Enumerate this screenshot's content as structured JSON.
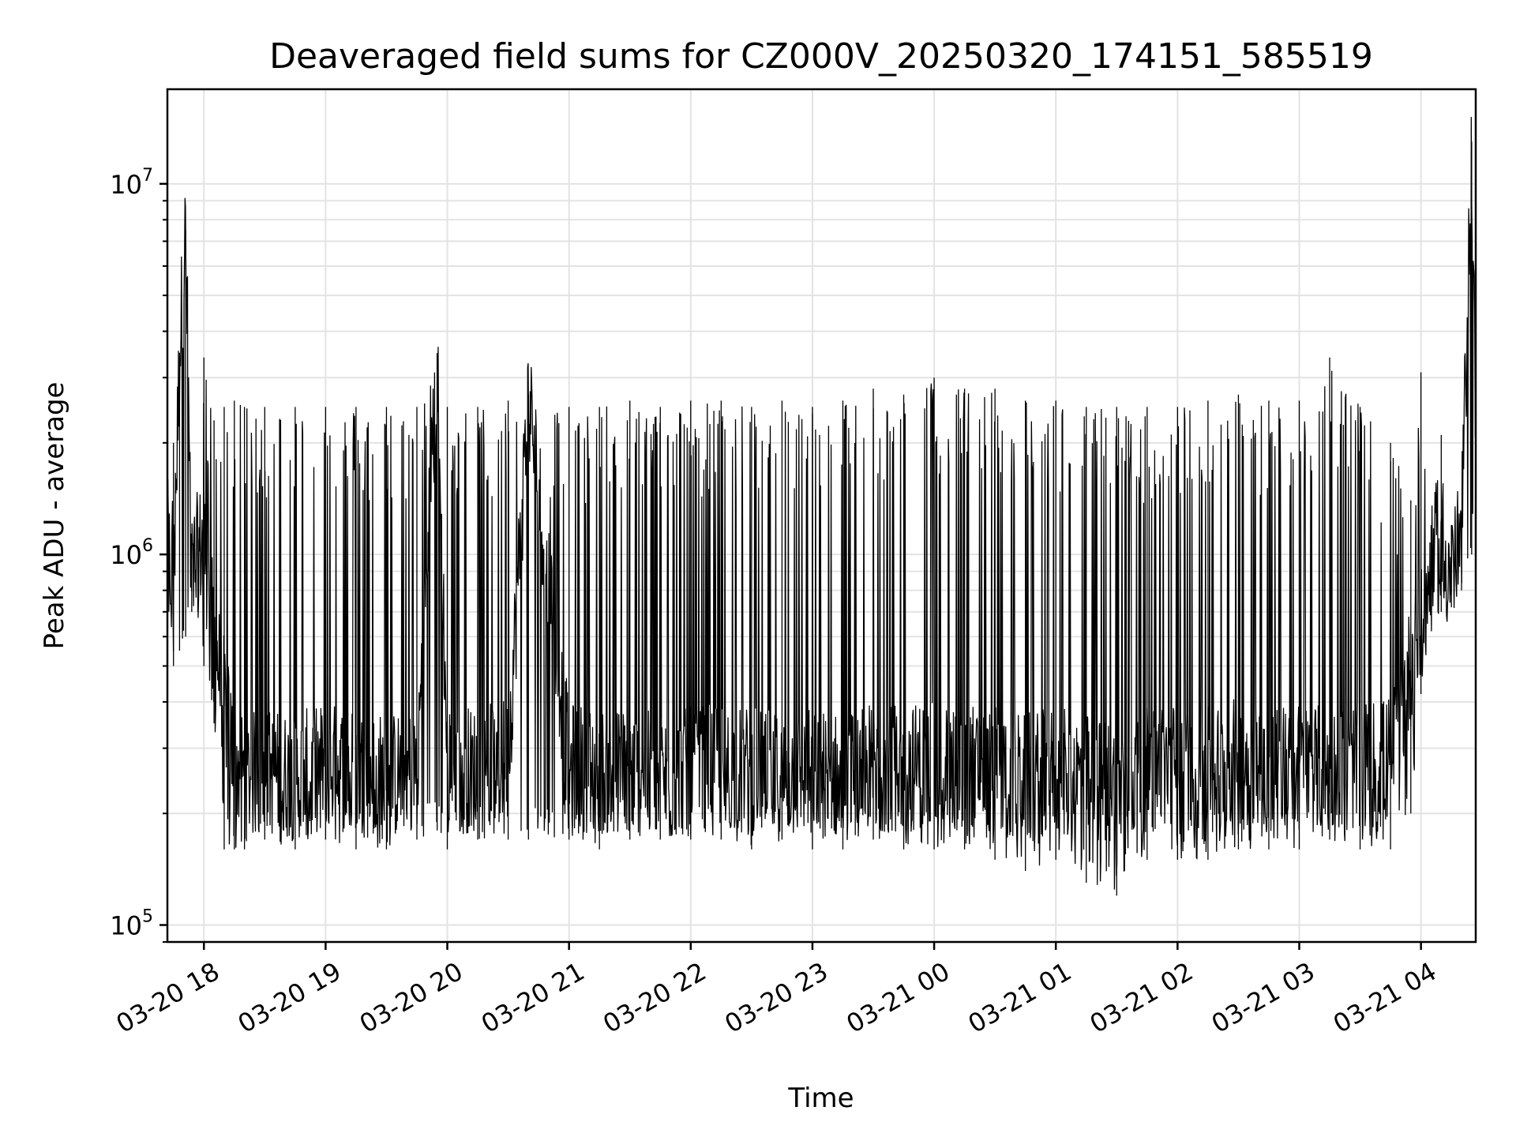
{
  "chart_data": {
    "type": "line",
    "title": "Deaveraged field sums for CZ000V_20250320_174151_585519",
    "xlabel": "Time",
    "ylabel": "Peak ADU - average",
    "yscale": "log",
    "ylim": [
      90000,
      18000000
    ],
    "xlim": [
      "03-20 17:42",
      "03-21 04:27"
    ],
    "grid": true,
    "line_color": "#000000",
    "x_ticks": [
      "03-20 18",
      "03-20 19",
      "03-20 20",
      "03-20 21",
      "03-20 22",
      "03-20 23",
      "03-21 00",
      "03-21 01",
      "03-21 02",
      "03-21 03",
      "03-21 04"
    ],
    "y_ticks": [
      {
        "base": "10",
        "exp": "5"
      },
      {
        "base": "10",
        "exp": "6"
      },
      {
        "base": "10",
        "exp": "7"
      }
    ],
    "series": [
      {
        "x": [
          "03-20 17:42",
          "03-20 17:45",
          "03-20 17:48",
          "03-20 17:51",
          "03-20 17:54",
          "03-20 17:57",
          "03-20 18:00",
          "03-20 18:05",
          "03-20 18:10",
          "03-20 18:15",
          "03-20 18:20",
          "03-20 18:30",
          "03-20 18:45",
          "03-20 19:00",
          "03-20 19:15",
          "03-20 19:30",
          "03-20 19:45",
          "03-20 19:55",
          "03-20 20:00",
          "03-20 20:15",
          "03-20 20:30",
          "03-20 20:40",
          "03-20 21:00",
          "03-20 21:15",
          "03-20 21:30",
          "03-20 21:45",
          "03-20 22:00",
          "03-20 22:15",
          "03-20 22:30",
          "03-20 22:45",
          "03-20 23:00",
          "03-20 23:15",
          "03-20 23:30",
          "03-20 23:45",
          "03-21 00:00",
          "03-21 00:15",
          "03-21 00:30",
          "03-21 00:45",
          "03-21 01:00",
          "03-21 01:15",
          "03-21 01:30",
          "03-21 01:45",
          "03-21 02:00",
          "03-21 02:15",
          "03-21 02:30",
          "03-21 02:45",
          "03-21 03:00",
          "03-21 03:15",
          "03-21 03:30",
          "03-21 03:45",
          "03-21 03:55",
          "03-21 04:00",
          "03-21 04:05",
          "03-21 04:10",
          "03-21 04:15",
          "03-21 04:20",
          "03-21 04:25",
          "03-21 04:27"
        ],
        "y": [
          1100000,
          800000,
          3500000,
          7500000,
          900000,
          1000000,
          1100000,
          600000,
          400000,
          280000,
          250000,
          260000,
          250000,
          270000,
          260000,
          250000,
          260000,
          3200000,
          270000,
          260000,
          280000,
          2700000,
          270000,
          260000,
          260000,
          250000,
          260000,
          270000,
          260000,
          250000,
          260000,
          250000,
          270000,
          260000,
          280000,
          270000,
          260000,
          250000,
          260000,
          250000,
          240000,
          260000,
          270000,
          260000,
          280000,
          270000,
          270000,
          260000,
          270000,
          280000,
          500000,
          600000,
          900000,
          1000000,
          900000,
          1100000,
          13000000,
          2000000
        ],
        "upper_envelope": [
          1200000,
          2000000,
          3500000,
          7500000,
          1100000,
          1100000,
          3400000,
          2300000,
          2500000,
          2600000,
          2500000,
          2500000,
          2500000,
          2500000,
          2500000,
          2500000,
          2500000,
          3200000,
          2500000,
          2500000,
          2600000,
          2700000,
          2500000,
          2500000,
          2600000,
          2500000,
          2600000,
          2600000,
          2500000,
          2600000,
          2500000,
          2600000,
          2800000,
          2700000,
          3000000,
          2800000,
          2800000,
          2600000,
          2600000,
          2500000,
          2500000,
          2500000,
          2500000,
          2600000,
          2700000,
          2600000,
          2600000,
          3400000,
          2500000,
          2000000,
          1400000,
          3100000,
          1200000,
          2100000,
          1200000,
          1300000,
          13000000,
          7500000
        ],
        "lower_envelope": [
          600000,
          500000,
          550000,
          600000,
          700000,
          700000,
          500000,
          350000,
          160000,
          160000,
          160000,
          170000,
          160000,
          170000,
          160000,
          160000,
          170000,
          180000,
          160000,
          170000,
          170000,
          170000,
          170000,
          160000,
          170000,
          170000,
          170000,
          170000,
          160000,
          170000,
          160000,
          160000,
          170000,
          160000,
          160000,
          160000,
          150000,
          140000,
          150000,
          130000,
          120000,
          150000,
          150000,
          150000,
          160000,
          160000,
          160000,
          170000,
          160000,
          160000,
          200000,
          420000,
          700000,
          700000,
          720000,
          800000,
          1000000,
          1500000
        ]
      }
    ]
  }
}
